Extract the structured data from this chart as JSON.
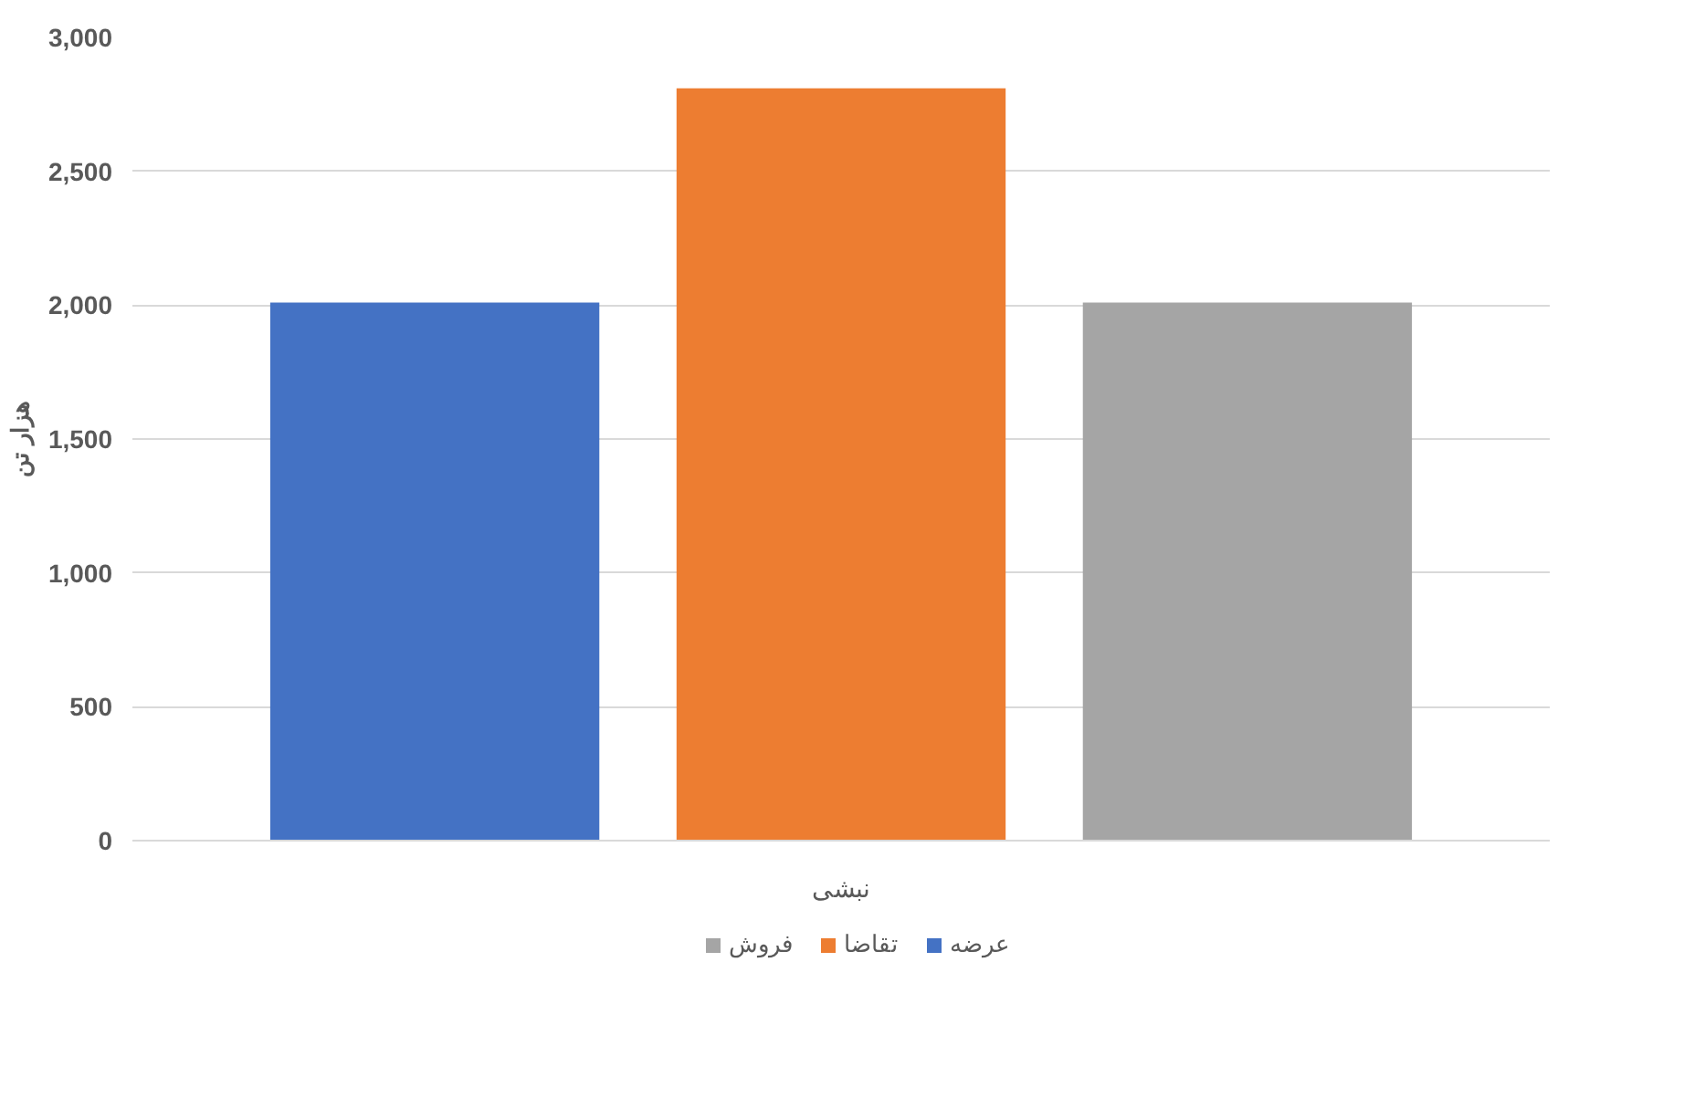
{
  "chart_data": {
    "type": "bar",
    "ylabel": "هزار تن",
    "categories": [
      "نبشی"
    ],
    "series": [
      {
        "name": "عرضه",
        "color": "#4472c4",
        "values": [
          2010
        ]
      },
      {
        "name": "تقاضا",
        "color": "#ed7d31",
        "values": [
          2810
        ]
      },
      {
        "name": "فروش",
        "color": "#a5a5a5",
        "values": [
          2010
        ]
      }
    ],
    "ylim": [
      0,
      3000
    ],
    "yticks": [
      0,
      500,
      {
        "value": 1000,
        "label": "1,000"
      },
      {
        "value": 1500,
        "label": "1,500"
      },
      {
        "value": 2000,
        "label": "2,000"
      },
      {
        "value": 2500,
        "label": "2,500"
      },
      {
        "value": 3000,
        "label": "3,000"
      }
    ],
    "grid": "y",
    "legend": "bottom"
  }
}
